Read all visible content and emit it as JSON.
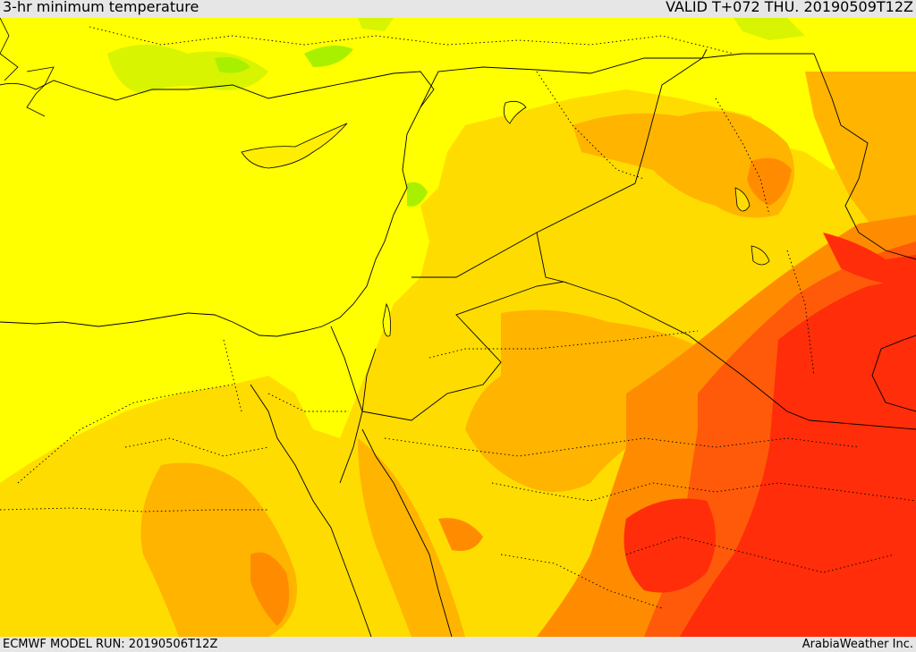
{
  "header": {
    "title": "3-hr minimum temperature",
    "valid": "VALID T+072 THU. 20190509T12Z"
  },
  "footer": {
    "model_run": "ECMWF MODEL RUN: 20190506T12Z",
    "credit": "ArabiaWeather Inc."
  },
  "colors": {
    "cool_green": "#a8f000",
    "light_green": "#d8f400",
    "yellow": "#ffff00",
    "yellow_orange": "#ffdc00",
    "orange": "#ffb400",
    "dark_orange": "#ff8c00",
    "red_orange": "#ff5a0a",
    "red": "#ff2d0a",
    "sea": "#ffff00",
    "border": "#000000"
  }
}
